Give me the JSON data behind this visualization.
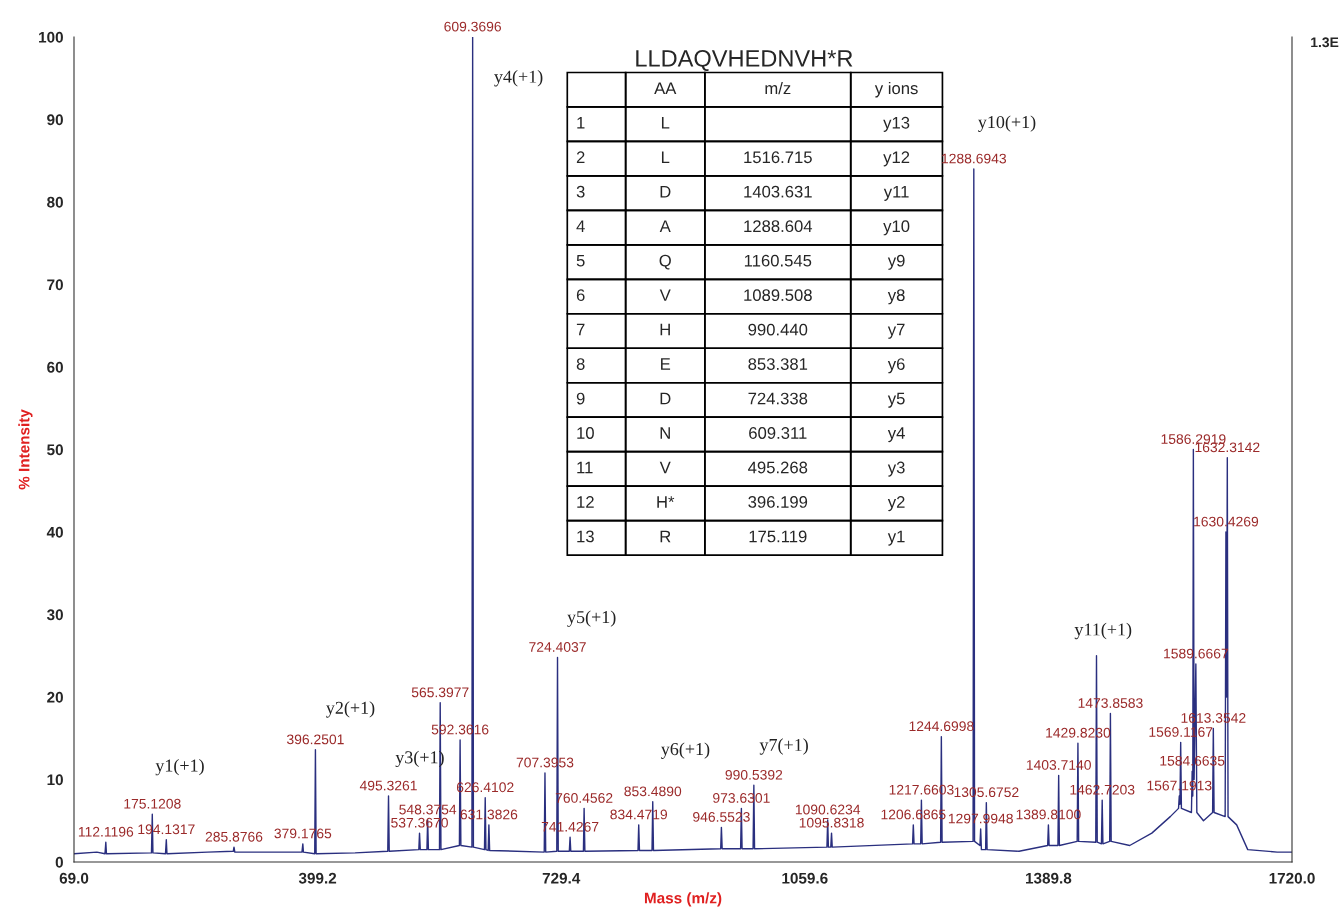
{
  "chart_data": {
    "type": "line",
    "xlabel": "Mass (m/z)",
    "ylabel": "% Intensity",
    "xlim": [
      69.0,
      1720.0
    ],
    "xticks": [
      {
        "value": 69.0,
        "label": "69.0"
      },
      {
        "value": 399.2,
        "label": "399.2"
      },
      {
        "value": 729.4,
        "label": "729.4"
      },
      {
        "value": 1059.6,
        "label": "1059.6"
      },
      {
        "value": 1389.8,
        "label": "1389.8"
      },
      {
        "value": 1720.0,
        "label": "1720.0"
      }
    ],
    "ylim": [
      0,
      100
    ],
    "yticks": [
      0,
      10,
      20,
      30,
      40,
      50,
      60,
      70,
      80,
      90,
      100
    ],
    "grid": false,
    "legend": false,
    "series": [
      {
        "color": "#2a2f7f",
        "x": [
          69,
          100,
          111,
          112.1196,
          113,
          174,
          175.1208,
          176,
          193,
          194.1317,
          195,
          250,
          284.9,
          285.8766,
          287,
          378,
          379.1765,
          380,
          395.3,
          396.2501,
          397.2,
          450,
          494.3,
          495.3261,
          496.3,
          536.4,
          537.367,
          538.4,
          547.4,
          548.3754,
          549.4,
          564.4,
          565.3977,
          566.4,
          591.4,
          592.3616,
          593.4,
          608.4,
          609.3696,
          610.4,
          625.4,
          626.4102,
          627.4,
          630.4,
          631.3826,
          632.4,
          706.4,
          707.3953,
          708.4,
          723.4,
          724.4037,
          725.4,
          740.4,
          741.4267,
          742.4,
          759.5,
          760.4562,
          761.5,
          833.5,
          834.4719,
          835.5,
          852.5,
          853.489,
          854.5,
          945.6,
          946.5523,
          947.6,
          972.6,
          973.6301,
          974.6,
          989.5,
          990.5392,
          991.5,
          1089.6,
          1090.6234,
          1091.6,
          1094.8,
          1095.8318,
          1096.8,
          1205.7,
          1206.6865,
          1207.7,
          1216.7,
          1217.6603,
          1218.7,
          1243.7,
          1244.6998,
          1245.7,
          1287.7,
          1288.6943,
          1289.7,
          1297.0,
          1297.9948,
          1299.0,
          1304.7,
          1305.6752,
          1306.7,
          1350,
          1388.8,
          1389.81,
          1390.8,
          1402.7,
          1403.714,
          1404.7,
          1428.8,
          1429.823,
          1430.8,
          1454,
          1455,
          1456,
          1461.7,
          1462.7203,
          1463.7,
          1472.9,
          1473.8583,
          1474.9,
          1500,
          1530,
          1555,
          1566.2,
          1567.1913,
          1568.1,
          1569.1167,
          1570.1,
          1583.7,
          1584.6635,
          1585.5,
          1586.2919,
          1587.3,
          1589.6667,
          1591.0,
          1600,
          1612.4,
          1613.3542,
          1614.4,
          1629.4,
          1630.4269,
          1631.3,
          1632.3142,
          1633.3,
          1645,
          1660,
          1700,
          1720
        ],
        "values": [
          1.0,
          1.2,
          1.0,
          2.4,
          1.0,
          1.1,
          5.8,
          1.1,
          1.0,
          2.7,
          1.0,
          1.2,
          1.3,
          1.8,
          1.2,
          1.2,
          2.2,
          1.2,
          1.0,
          13.6,
          1.0,
          1.1,
          1.3,
          8.0,
          1.3,
          1.5,
          3.5,
          1.5,
          1.5,
          5.1,
          1.5,
          1.5,
          19.3,
          1.5,
          2.0,
          14.8,
          2.0,
          1.8,
          100,
          1.8,
          1.5,
          7.8,
          1.5,
          1.4,
          4.5,
          1.4,
          1.2,
          10.8,
          1.2,
          1.3,
          24.8,
          1.3,
          1.3,
          3.0,
          1.3,
          1.3,
          6.5,
          1.3,
          1.4,
          4.5,
          1.4,
          1.4,
          7.3,
          1.4,
          1.6,
          4.2,
          1.6,
          1.6,
          6.5,
          1.6,
          1.6,
          9.3,
          1.6,
          1.8,
          5.1,
          1.8,
          1.8,
          3.5,
          1.8,
          2.2,
          4.5,
          2.2,
          2.2,
          7.5,
          2.2,
          2.4,
          15.2,
          2.4,
          2.5,
          84.0,
          2.5,
          2.0,
          4.0,
          1.5,
          1.5,
          7.2,
          1.5,
          1.3,
          2.0,
          4.5,
          2.0,
          2.0,
          10.5,
          2.0,
          2.5,
          14.4,
          2.5,
          2.4,
          25.0,
          2.4,
          2.2,
          7.5,
          2.2,
          2.5,
          18.0,
          2.5,
          2.0,
          3.5,
          5.5,
          6.5,
          8.0,
          7.0,
          14.5,
          6.5,
          6.0,
          11.0,
          8.0,
          50.0,
          10.0,
          24.0,
          6.0,
          5.0,
          6.0,
          16.2,
          6.0,
          5.5,
          40.0,
          20.0,
          49.0,
          5.5,
          4.5,
          1.5,
          1.2,
          1.2
        ]
      }
    ],
    "annotations": [
      {
        "text": "112.1196",
        "x": 112.1196,
        "y": 2.4
      },
      {
        "text": "175.1208",
        "x": 175.1208,
        "y": 5.8
      },
      {
        "text": "194.1317",
        "x": 194.1317,
        "y": 2.7
      },
      {
        "text": "285.8766",
        "x": 285.8766,
        "y": 1.8
      },
      {
        "text": "379.1765",
        "x": 379.1765,
        "y": 2.2
      },
      {
        "text": "396.2501",
        "x": 396.2501,
        "y": 13.6
      },
      {
        "text": "495.3261",
        "x": 495.3261,
        "y": 8.0
      },
      {
        "text": "537.3670",
        "x": 537.367,
        "y": 3.5
      },
      {
        "text": "548.3754",
        "x": 548.3754,
        "y": 5.1
      },
      {
        "text": "565.3977",
        "x": 565.3977,
        "y": 19.3
      },
      {
        "text": "592.3616",
        "x": 592.3616,
        "y": 14.8
      },
      {
        "text": "609.3696",
        "x": 609.3696,
        "y": 100
      },
      {
        "text": "626.4102",
        "x": 626.4102,
        "y": 7.8
      },
      {
        "text": "631.3826",
        "x": 631.3826,
        "y": 4.5
      },
      {
        "text": "707.3953",
        "x": 707.3953,
        "y": 10.8
      },
      {
        "text": "724.4037",
        "x": 724.4037,
        "y": 24.8
      },
      {
        "text": "741.4267",
        "x": 741.4267,
        "y": 3.0
      },
      {
        "text": "760.4562",
        "x": 760.4562,
        "y": 6.5
      },
      {
        "text": "834.4719",
        "x": 834.4719,
        "y": 4.5
      },
      {
        "text": "853.4890",
        "x": 853.489,
        "y": 7.3
      },
      {
        "text": "946.5523",
        "x": 946.5523,
        "y": 4.2
      },
      {
        "text": "973.6301",
        "x": 973.6301,
        "y": 6.5
      },
      {
        "text": "990.5392",
        "x": 990.5392,
        "y": 9.3
      },
      {
        "text": "1090.6234",
        "x": 1090.6234,
        "y": 5.1
      },
      {
        "text": "1095.8318",
        "x": 1095.8318,
        "y": 3.5
      },
      {
        "text": "1206.6865",
        "x": 1206.6865,
        "y": 4.5
      },
      {
        "text": "1217.6603",
        "x": 1217.6603,
        "y": 7.5
      },
      {
        "text": "1244.6998",
        "x": 1244.6998,
        "y": 15.2
      },
      {
        "text": "1288.6943",
        "x": 1288.6943,
        "y": 84.0
      },
      {
        "text": "1297.9948",
        "x": 1297.9948,
        "y": 4.0
      },
      {
        "text": "1305.6752",
        "x": 1305.6752,
        "y": 7.2
      },
      {
        "text": "1389.8100",
        "x": 1389.81,
        "y": 4.5
      },
      {
        "text": "1403.7140",
        "x": 1403.714,
        "y": 10.5
      },
      {
        "text": "1429.8230",
        "x": 1429.823,
        "y": 14.4
      },
      {
        "text": "1462.7203",
        "x": 1462.7203,
        "y": 7.5
      },
      {
        "text": "1473.8583",
        "x": 1473.8583,
        "y": 18.0
      },
      {
        "text": "1567.1913",
        "x": 1567.1913,
        "y": 8.0
      },
      {
        "text": "1569.1167",
        "x": 1569.1167,
        "y": 14.5
      },
      {
        "text": "1584.6635",
        "x": 1584.6635,
        "y": 11.0
      },
      {
        "text": "1586.2919",
        "x": 1586.2919,
        "y": 50.0
      },
      {
        "text": "1589.6667",
        "x": 1589.6667,
        "y": 24.0
      },
      {
        "text": "1613.3542",
        "x": 1613.3542,
        "y": 16.2
      },
      {
        "text": "1630.4269",
        "x": 1630.4269,
        "y": 40.0
      },
      {
        "text": "1632.3142",
        "x": 1632.3142,
        "y": 49.0
      },
      "LLDAQVHEDNVH*R",
      "y1(+1)",
      "y2(+1)",
      "y3(+1)",
      "y4(+1)",
      "y5(+1)",
      "y6(+1)",
      "y7(+1)",
      "y10(+1)",
      "y11(+1)",
      "AA",
      "m/z",
      "y ions",
      "1",
      "L",
      "y13",
      "2",
      "L",
      "1516.715",
      "y12",
      "3",
      "D",
      "1403.631",
      "y11",
      "4",
      "A",
      "1288.604",
      "y10",
      "5",
      "Q",
      "1160.545",
      "y9",
      "6",
      "V",
      "1089.508",
      "y8",
      "7",
      "H",
      "990.440",
      "y7",
      "8",
      "E",
      "853.381",
      "y6",
      "9",
      "D",
      "724.338",
      "y5",
      "10",
      "N",
      "609.311",
      "y4",
      "11",
      "V",
      "495.268",
      "y3",
      "12",
      "H*",
      "396.199",
      "y2",
      "13",
      "R",
      "175.119",
      "y1",
      "1.3E"
    ]
  }
}
